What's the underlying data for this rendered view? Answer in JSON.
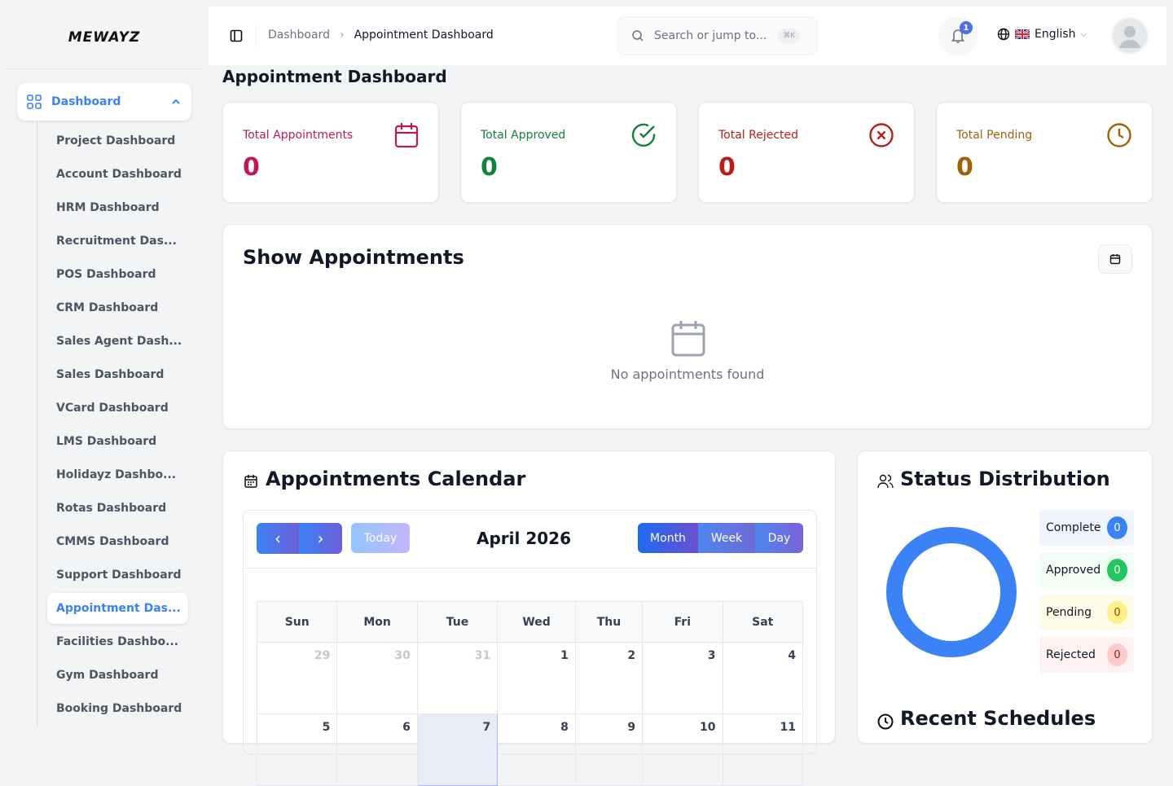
{
  "brand": "MEWAYZ",
  "sidebar": {
    "main": "Dashboard",
    "items": [
      "Project Dashboard",
      "Account Dashboard",
      "HRM Dashboard",
      "Recruitment Das...",
      "POS Dashboard",
      "CRM Dashboard",
      "Sales Agent Dash...",
      "Sales Dashboard",
      "VCard Dashboard",
      "LMS Dashboard",
      "Holidayz Dashbo...",
      "Rotas Dashboard",
      "CMMS Dashboard",
      "Support Dashboard",
      "Appointment Das...",
      "Facilities Dashbo...",
      "Gym Dashboard",
      "Booking Dashboard"
    ],
    "active_index": 14
  },
  "header": {
    "breadcrumb": [
      "Dashboard",
      "Appointment Dashboard"
    ],
    "search_placeholder": "Search or jump to...",
    "shortcut": "⌘K",
    "notifications": "1",
    "language": "English"
  },
  "page_title": "Appointment Dashboard",
  "stats": [
    {
      "label": "Total Appointments",
      "value": "0",
      "color": "#be185d",
      "icon": "calendar-icon"
    },
    {
      "label": "Total Approved",
      "value": "0",
      "color": "#15803d",
      "icon": "check-circle-icon"
    },
    {
      "label": "Total Rejected",
      "value": "0",
      "color": "#b91c1c",
      "icon": "x-circle-icon"
    },
    {
      "label": "Total Pending",
      "value": "0",
      "color": "#a16207",
      "icon": "clock-icon"
    }
  ],
  "show": {
    "title": "Show Appointments",
    "empty": "No appointments found"
  },
  "calendar": {
    "title": "Appointments Calendar",
    "month": "April 2026",
    "today": "Today",
    "views": [
      "Month",
      "Week",
      "Day"
    ],
    "active_view": "Month",
    "days": [
      "Sun",
      "Mon",
      "Tue",
      "Wed",
      "Thu",
      "Fri",
      "Sat"
    ],
    "weeks": [
      [
        "29",
        "30",
        "31",
        "1",
        "2",
        "3",
        "4"
      ],
      [
        "5",
        "6",
        "7",
        "8",
        "9",
        "10",
        "11"
      ]
    ],
    "today_date": "7"
  },
  "status": {
    "title": "Status Distribution",
    "items": [
      {
        "label": "Complete",
        "value": "0",
        "bg": "#eff6ff",
        "badge": "#3b82f6",
        "fg": "#fff"
      },
      {
        "label": "Approved",
        "value": "0",
        "bg": "#f0fdf4",
        "badge": "#22c55e",
        "fg": "#fff"
      },
      {
        "label": "Pending",
        "value": "0",
        "bg": "#fefce8",
        "badge": "#fef08a",
        "fg": "#854d0e"
      },
      {
        "label": "Rejected",
        "value": "0",
        "bg": "#fef2f2",
        "badge": "#fecaca",
        "fg": "#991b1b"
      }
    ],
    "donut_color": "#3b82f6"
  },
  "recent": {
    "title": "Recent Schedules"
  }
}
